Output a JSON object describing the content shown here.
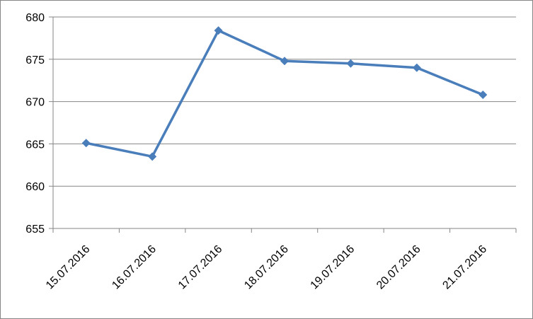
{
  "chart_data": {
    "type": "line",
    "categories": [
      "15.07.2016",
      "16.07.2016",
      "17.07.2016",
      "18.07.2016",
      "19.07.2016",
      "20.07.2016",
      "21.07.2016"
    ],
    "series": [
      {
        "name": null,
        "color": "#4a7ebb",
        "values": [
          665.1,
          663.5,
          678.4,
          674.8,
          674.5,
          674.0,
          670.8
        ]
      }
    ],
    "ylim": [
      655,
      680
    ],
    "yticks": [
      655,
      660,
      665,
      670,
      675,
      680
    ],
    "grid": true
  }
}
